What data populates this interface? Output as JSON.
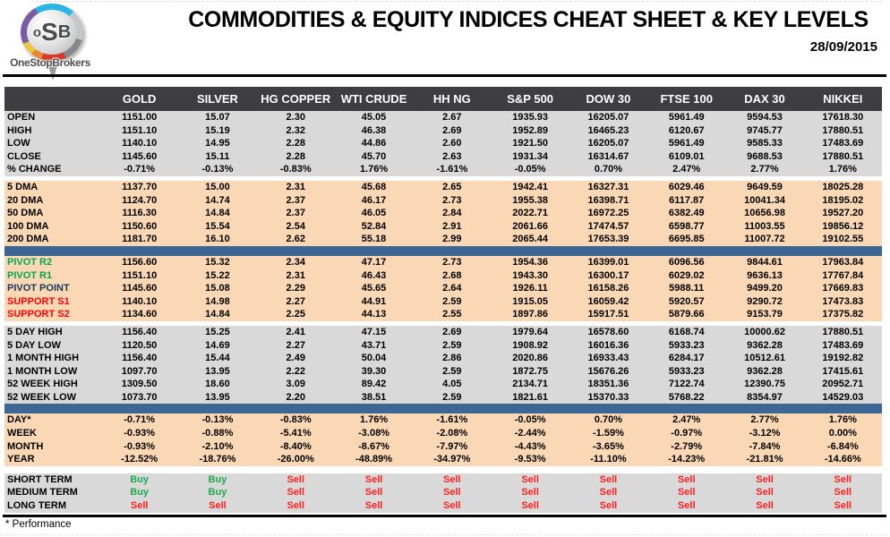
{
  "header": {
    "logo": {
      "o": "o",
      "s": "S",
      "b": "B",
      "brand": "OneStopBrokers"
    },
    "title": "COMMODITIES & EQUITY INDICES CHEAT SHEET & KEY LEVELS",
    "date": "28/09/2015"
  },
  "table": {
    "columns": [
      "GOLD",
      "SILVER",
      "HG COPPER",
      "WTI CRUDE",
      "HH NG",
      "S&P 500",
      "DOW 30",
      "FTSE 100",
      "DAX 30",
      "NIKKEI"
    ],
    "sections": [
      {
        "id": "ohlc",
        "bg": "gray",
        "after": "gap",
        "rows": [
          {
            "label": "OPEN",
            "values": [
              "1151.00",
              "15.07",
              "2.30",
              "45.05",
              "2.67",
              "1935.93",
              "16205.07",
              "5961.49",
              "9594.53",
              "17618.30"
            ]
          },
          {
            "label": "HIGH",
            "values": [
              "1151.10",
              "15.19",
              "2.32",
              "46.38",
              "2.69",
              "1952.89",
              "16465.23",
              "6120.67",
              "9745.77",
              "17880.51"
            ]
          },
          {
            "label": "LOW",
            "values": [
              "1140.10",
              "14.95",
              "2.28",
              "44.86",
              "2.60",
              "1921.50",
              "16205.07",
              "5961.49",
              "9585.33",
              "17483.69"
            ]
          },
          {
            "label": "CLOSE",
            "values": [
              "1145.60",
              "15.11",
              "2.28",
              "45.70",
              "2.63",
              "1931.34",
              "16314.67",
              "6109.01",
              "9688.53",
              "17880.51"
            ]
          },
          {
            "label": "% CHANGE",
            "values": [
              "-0.71%",
              "-0.13%",
              "-0.83%",
              "1.76%",
              "-1.61%",
              "-0.05%",
              "0.70%",
              "2.47%",
              "2.77%",
              "1.76%"
            ]
          }
        ]
      },
      {
        "id": "dma",
        "bg": "peach",
        "after": "bar",
        "rows": [
          {
            "label": "5 DMA",
            "values": [
              "1137.70",
              "15.00",
              "2.31",
              "45.68",
              "2.65",
              "1942.41",
              "16327.31",
              "6029.46",
              "9649.59",
              "18025.28"
            ]
          },
          {
            "label": "20 DMA",
            "values": [
              "1124.70",
              "14.74",
              "2.37",
              "46.17",
              "2.73",
              "1955.38",
              "16398.71",
              "6117.87",
              "10041.34",
              "18195.02"
            ]
          },
          {
            "label": "50 DMA",
            "values": [
              "1116.30",
              "14.84",
              "2.37",
              "46.05",
              "2.84",
              "2022.71",
              "16972.25",
              "6382.49",
              "10656.98",
              "19527.20"
            ]
          },
          {
            "label": "100 DMA",
            "values": [
              "1150.60",
              "15.54",
              "2.54",
              "52.84",
              "2.91",
              "2061.66",
              "17474.57",
              "6598.77",
              "11003.55",
              "19856.12"
            ]
          },
          {
            "label": "200 DMA",
            "values": [
              "1181.70",
              "16.10",
              "2.62",
              "55.18",
              "2.99",
              "2065.44",
              "17653.39",
              "6695.85",
              "11007.72",
              "19102.55"
            ]
          }
        ]
      },
      {
        "id": "pivots",
        "bg": "peach",
        "after": "gap",
        "rows": [
          {
            "label": "PIVOT R2",
            "label_color": "green",
            "values": [
              "1156.60",
              "15.32",
              "2.34",
              "47.17",
              "2.73",
              "1954.36",
              "16399.01",
              "6096.56",
              "9844.61",
              "17963.84"
            ]
          },
          {
            "label": "PIVOT R1",
            "label_color": "green",
            "values": [
              "1151.10",
              "15.22",
              "2.31",
              "46.43",
              "2.68",
              "1943.30",
              "16300.17",
              "6029.02",
              "9636.13",
              "17767.84"
            ]
          },
          {
            "label": "PIVOT POINT",
            "label_color": "navy",
            "values": [
              "1145.60",
              "15.08",
              "2.29",
              "45.65",
              "2.64",
              "1926.11",
              "16158.26",
              "5988.11",
              "9499.20",
              "17669.83"
            ]
          },
          {
            "label": "SUPPORT S1",
            "label_color": "red",
            "values": [
              "1140.10",
              "14.98",
              "2.27",
              "44.91",
              "2.59",
              "1915.05",
              "16059.42",
              "5920.57",
              "9290.72",
              "17473.83"
            ]
          },
          {
            "label": "SUPPORT S2",
            "label_color": "red",
            "values": [
              "1134.60",
              "14.84",
              "2.25",
              "44.13",
              "2.55",
              "1897.86",
              "15917.51",
              "5879.66",
              "9153.79",
              "17375.82"
            ]
          }
        ]
      },
      {
        "id": "ranges",
        "bg": "gray",
        "after": "bar",
        "rows": [
          {
            "label": "5 DAY HIGH",
            "values": [
              "1156.40",
              "15.25",
              "2.41",
              "47.15",
              "2.69",
              "1979.64",
              "16578.60",
              "6168.74",
              "10000.62",
              "17880.51"
            ]
          },
          {
            "label": "5 DAY LOW",
            "values": [
              "1120.50",
              "14.69",
              "2.27",
              "43.71",
              "2.59",
              "1908.92",
              "16016.36",
              "5933.23",
              "9362.28",
              "17483.69"
            ]
          },
          {
            "label": "1 MONTH HIGH",
            "values": [
              "1156.40",
              "15.44",
              "2.49",
              "50.04",
              "2.86",
              "2020.86",
              "16933.43",
              "6284.17",
              "10512.61",
              "19192.82"
            ]
          },
          {
            "label": "1 MONTH LOW",
            "values": [
              "1097.70",
              "13.95",
              "2.22",
              "39.30",
              "2.59",
              "1872.75",
              "15676.26",
              "5933.23",
              "9362.28",
              "17415.61"
            ]
          },
          {
            "label": "52 WEEK HIGH",
            "values": [
              "1309.50",
              "18.60",
              "3.09",
              "89.42",
              "4.05",
              "2134.71",
              "18351.36",
              "7122.74",
              "12390.75",
              "20952.71"
            ]
          },
          {
            "label": "52 WEEK LOW",
            "values": [
              "1073.70",
              "13.95",
              "2.20",
              "38.51",
              "2.59",
              "1821.61",
              "15370.33",
              "5768.22",
              "8354.97",
              "14529.03"
            ]
          }
        ]
      },
      {
        "id": "performance",
        "bg": "peach",
        "after": "gap2",
        "rows": [
          {
            "label": "DAY*",
            "values": [
              "-0.71%",
              "-0.13%",
              "-0.83%",
              "1.76%",
              "-1.61%",
              "-0.05%",
              "0.70%",
              "2.47%",
              "2.77%",
              "1.76%"
            ]
          },
          {
            "label": "WEEK",
            "values": [
              "-0.93%",
              "-0.88%",
              "-5.41%",
              "-3.08%",
              "-2.08%",
              "-2.44%",
              "-1.59%",
              "-0.97%",
              "-3.12%",
              "0.00%"
            ]
          },
          {
            "label": "MONTH",
            "values": [
              "-0.93%",
              "-2.10%",
              "-8.40%",
              "-8.67%",
              "-7.97%",
              "-4.43%",
              "-3.65%",
              "-2.79%",
              "-7.84%",
              "-6.84%"
            ]
          },
          {
            "label": "YEAR",
            "values": [
              "-12.52%",
              "-18.76%",
              "-26.00%",
              "-48.89%",
              "-34.97%",
              "-9.53%",
              "-11.10%",
              "-14.23%",
              "-21.81%",
              "-14.66%"
            ]
          }
        ]
      },
      {
        "id": "signals",
        "bg": "gray",
        "signal": true,
        "rows": [
          {
            "label": "SHORT TERM",
            "values": [
              "Buy",
              "Buy",
              "Sell",
              "Sell",
              "Sell",
              "Sell",
              "Sell",
              "Sell",
              "Sell",
              "Sell"
            ]
          },
          {
            "label": "MEDIUM TERM",
            "values": [
              "Buy",
              "Buy",
              "Sell",
              "Sell",
              "Sell",
              "Sell",
              "Sell",
              "Sell",
              "Sell",
              "Sell"
            ]
          },
          {
            "label": "LONG TERM",
            "values": [
              "Sell",
              "Sell",
              "Sell",
              "Sell",
              "Sell",
              "Sell",
              "Sell",
              "Sell",
              "Sell",
              "Sell"
            ]
          }
        ]
      }
    ]
  },
  "footer": {
    "note": "* Performance"
  },
  "colors": {
    "header_bg": "#3e3e40",
    "gray": "#d9d9d9",
    "peach": "#fad8b6",
    "bar_blue": "#3e6695",
    "green": "#00a651",
    "navy": "#17375d",
    "red": "#ff0000",
    "buy_green": "#1fa84d",
    "sell_red": "#ff1f1f"
  }
}
